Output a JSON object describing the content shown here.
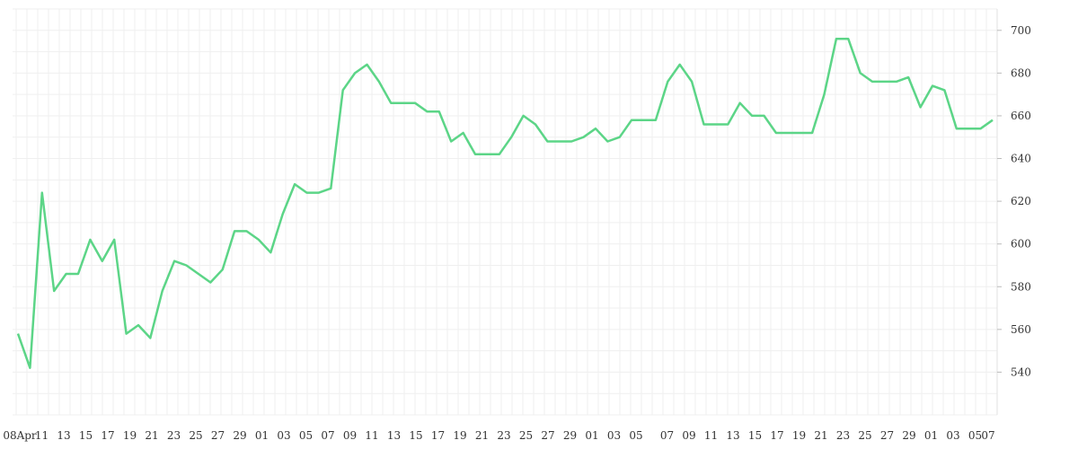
{
  "chart_data": {
    "type": "line",
    "title": "",
    "xlabel": "",
    "ylabel": "",
    "ylim": [
      520,
      710
    ],
    "y_ticks": [
      540,
      560,
      580,
      600,
      620,
      640,
      660,
      680,
      700
    ],
    "x_tick_labels": [
      "08Apr",
      "11",
      "13",
      "15",
      "17",
      "19",
      "21",
      "23",
      "25",
      "27",
      "29",
      "01",
      "03",
      "05",
      "07",
      "09",
      "11",
      "13",
      "15",
      "17",
      "19",
      "21",
      "23",
      "25",
      "27",
      "29",
      "01",
      "03",
      "05",
      "07",
      "09",
      "11",
      "13",
      "15",
      "17",
      "19",
      "21",
      "23",
      "25",
      "27",
      "29",
      "01",
      "03",
      "05",
      "07"
    ],
    "grid": true,
    "legend": "none",
    "colors": {
      "line": "#5cd587",
      "grid": "#efefef",
      "text": "#333333"
    },
    "series": [
      {
        "values": [
          558,
          542,
          624,
          578,
          586,
          586,
          602,
          592,
          602,
          558,
          562,
          556,
          578,
          592,
          590,
          586,
          582,
          588,
          606,
          606,
          602,
          596,
          614,
          628,
          624,
          624,
          626,
          672,
          680,
          684,
          676,
          666,
          666,
          666,
          662,
          662,
          648,
          652,
          642,
          642,
          642,
          650,
          660,
          656,
          648,
          648,
          648,
          650,
          654,
          648,
          650,
          658,
          658,
          658,
          676,
          684,
          676,
          656,
          656,
          656,
          666,
          660,
          660,
          652,
          652,
          652,
          652,
          670,
          696,
          696,
          680,
          676,
          676,
          676,
          678,
          664,
          674,
          672,
          654,
          654,
          654,
          658
        ]
      }
    ]
  }
}
